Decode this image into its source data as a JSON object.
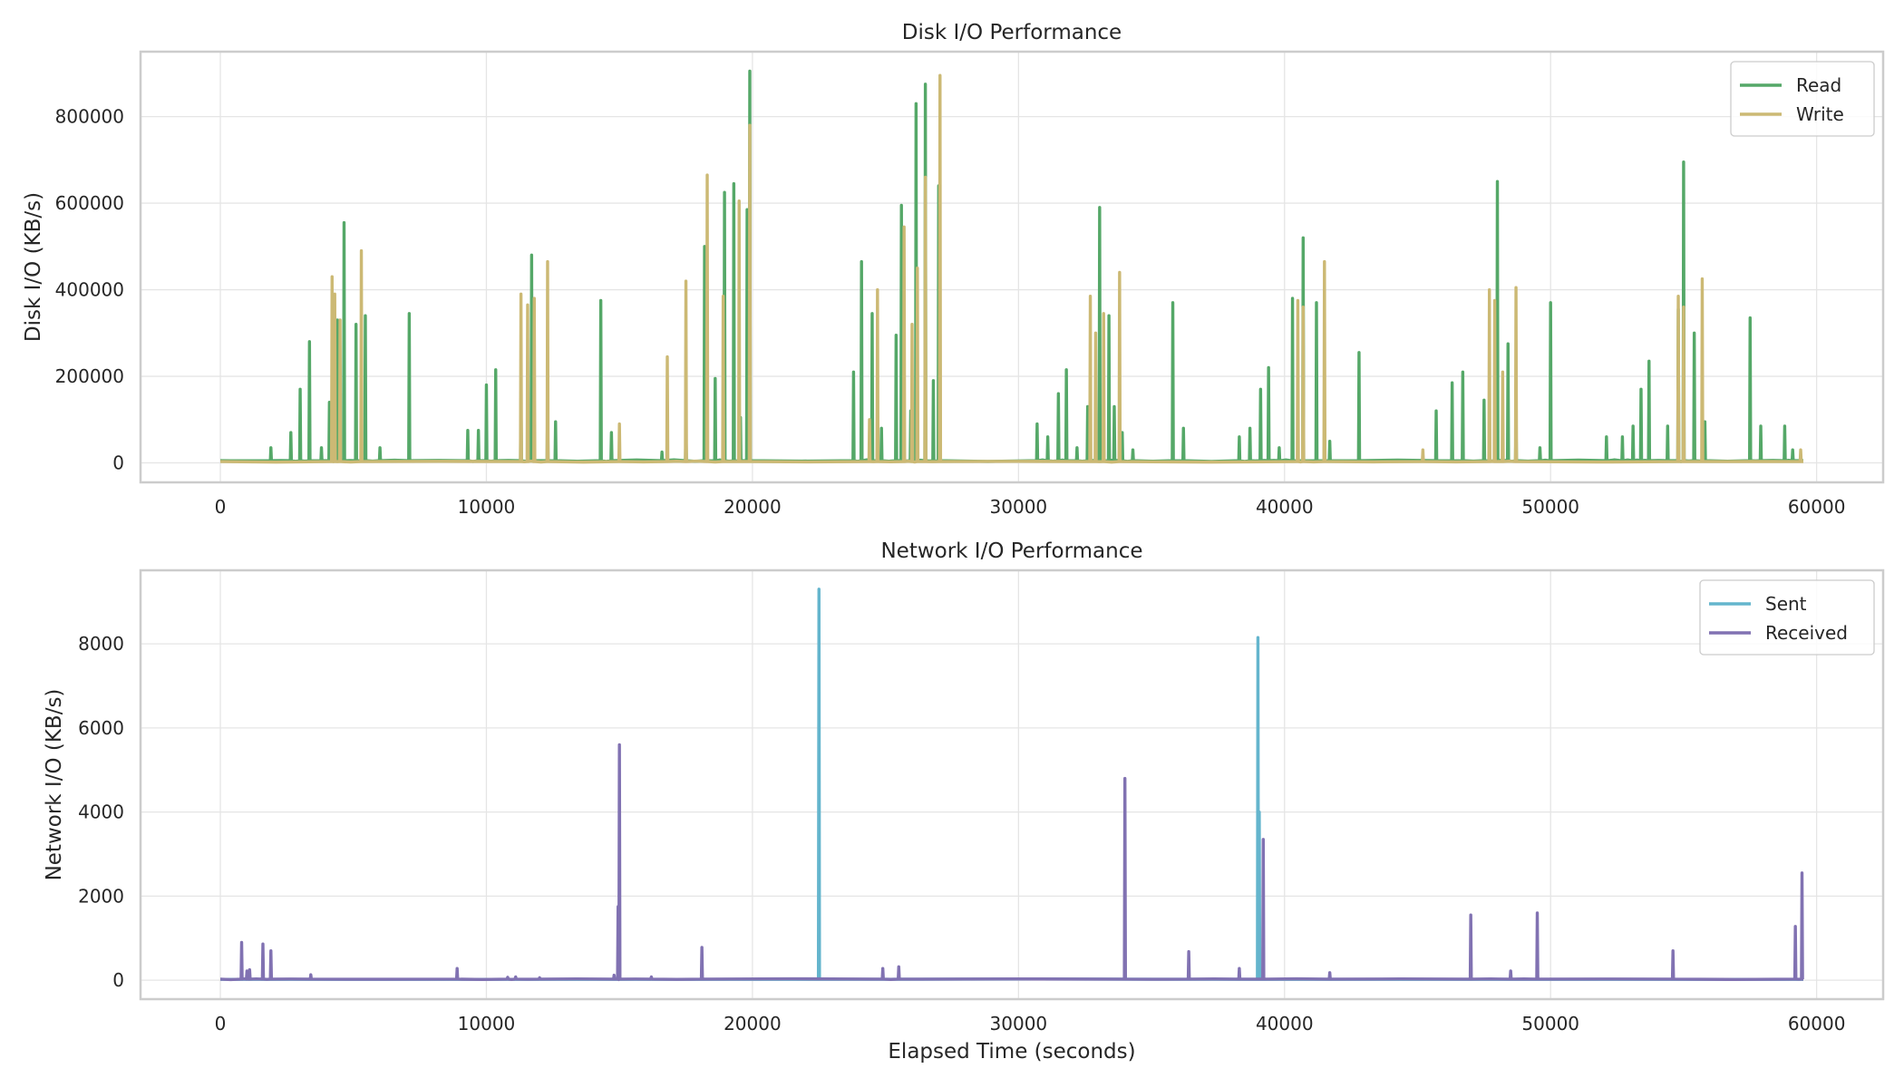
{
  "chart_data": [
    {
      "type": "line",
      "title": "Disk I/O Performance",
      "xlabel": "",
      "ylabel": "Disk I/O (KB/s)",
      "xlim": [
        -3000,
        62500
      ],
      "ylim": [
        -45000,
        950000
      ],
      "xticks": [
        0,
        10000,
        20000,
        30000,
        40000,
        50000,
        60000
      ],
      "yticks": [
        0,
        200000,
        400000,
        600000,
        800000
      ],
      "xtick_labels": [
        "0",
        "10000",
        "20000",
        "30000",
        "40000",
        "50000",
        "60000"
      ],
      "ytick_labels": [
        "0",
        "200000",
        "400000",
        "600000",
        "800000"
      ],
      "grid": true,
      "legend_position": "top-right",
      "series": [
        {
          "name": "Read",
          "color": "#55a868",
          "baseline": 5000,
          "x_end": 59500,
          "spikes": [
            [
              1900,
              35000
            ],
            [
              2650,
              70000
            ],
            [
              3000,
              170000
            ],
            [
              3350,
              280000
            ],
            [
              3800,
              35000
            ],
            [
              4100,
              140000
            ],
            [
              4400,
              330000
            ],
            [
              4650,
              555000
            ],
            [
              5100,
              320000
            ],
            [
              5450,
              340000
            ],
            [
              6000,
              35000
            ],
            [
              7100,
              345000
            ],
            [
              9300,
              75000
            ],
            [
              9700,
              75000
            ],
            [
              10000,
              180000
            ],
            [
              10350,
              215000
            ],
            [
              11300,
              150000
            ],
            [
              11700,
              480000
            ],
            [
              12300,
              135000
            ],
            [
              12600,
              95000
            ],
            [
              14300,
              375000
            ],
            [
              14700,
              70000
            ],
            [
              16600,
              25000
            ],
            [
              17500,
              75000
            ],
            [
              18200,
              500000
            ],
            [
              18600,
              195000
            ],
            [
              18950,
              625000
            ],
            [
              19300,
              645000
            ],
            [
              19550,
              105000
            ],
            [
              19800,
              585000
            ],
            [
              19900,
              905000
            ],
            [
              23800,
              210000
            ],
            [
              24100,
              465000
            ],
            [
              24500,
              345000
            ],
            [
              24850,
              80000
            ],
            [
              25400,
              295000
            ],
            [
              25600,
              595000
            ],
            [
              25950,
              120000
            ],
            [
              26150,
              830000
            ],
            [
              26500,
              875000
            ],
            [
              26800,
              190000
            ],
            [
              27000,
              640000
            ],
            [
              30700,
              90000
            ],
            [
              31100,
              60000
            ],
            [
              31500,
              160000
            ],
            [
              31800,
              215000
            ],
            [
              32200,
              35000
            ],
            [
              32600,
              130000
            ],
            [
              33050,
              590000
            ],
            [
              33400,
              340000
            ],
            [
              33600,
              130000
            ],
            [
              33900,
              70000
            ],
            [
              34300,
              30000
            ],
            [
              35800,
              370000
            ],
            [
              36200,
              80000
            ],
            [
              38300,
              60000
            ],
            [
              38700,
              80000
            ],
            [
              39100,
              170000
            ],
            [
              39400,
              220000
            ],
            [
              39800,
              35000
            ],
            [
              40300,
              380000
            ],
            [
              40700,
              520000
            ],
            [
              41200,
              370000
            ],
            [
              41700,
              50000
            ],
            [
              42800,
              255000
            ],
            [
              45700,
              120000
            ],
            [
              46300,
              185000
            ],
            [
              46700,
              210000
            ],
            [
              47500,
              145000
            ],
            [
              48000,
              650000
            ],
            [
              48400,
              275000
            ],
            [
              48700,
              95000
            ],
            [
              49600,
              35000
            ],
            [
              50000,
              370000
            ],
            [
              52100,
              60000
            ],
            [
              52700,
              60000
            ],
            [
              53100,
              85000
            ],
            [
              53400,
              170000
            ],
            [
              53700,
              235000
            ],
            [
              54400,
              85000
            ],
            [
              54800,
              355000
            ],
            [
              55000,
              695000
            ],
            [
              55400,
              300000
            ],
            [
              55800,
              95000
            ],
            [
              57500,
              335000
            ],
            [
              57900,
              85000
            ],
            [
              58800,
              85000
            ],
            [
              59100,
              30000
            ]
          ]
        },
        {
          "name": "Write",
          "color": "#ccb974",
          "baseline": 3000,
          "x_end": 59500,
          "spikes": [
            [
              4200,
              430000
            ],
            [
              4300,
              390000
            ],
            [
              4500,
              330000
            ],
            [
              5300,
              490000
            ],
            [
              11300,
              390000
            ],
            [
              11550,
              365000
            ],
            [
              11800,
              380000
            ],
            [
              12300,
              465000
            ],
            [
              15000,
              90000
            ],
            [
              16800,
              245000
            ],
            [
              17500,
              420000
            ],
            [
              18300,
              665000
            ],
            [
              18900,
              385000
            ],
            [
              19500,
              605000
            ],
            [
              19900,
              780000
            ],
            [
              24400,
              100000
            ],
            [
              24700,
              400000
            ],
            [
              25700,
              545000
            ],
            [
              26000,
              320000
            ],
            [
              26200,
              450000
            ],
            [
              26500,
              660000
            ],
            [
              27050,
              895000
            ],
            [
              32700,
              385000
            ],
            [
              32900,
              300000
            ],
            [
              33200,
              345000
            ],
            [
              33800,
              440000
            ],
            [
              40500,
              375000
            ],
            [
              40700,
              360000
            ],
            [
              41500,
              465000
            ],
            [
              45200,
              30000
            ],
            [
              47700,
              400000
            ],
            [
              47900,
              375000
            ],
            [
              48200,
              210000
            ],
            [
              48700,
              405000
            ],
            [
              54800,
              385000
            ],
            [
              55000,
              360000
            ],
            [
              55700,
              425000
            ],
            [
              59400,
              30000
            ]
          ]
        }
      ]
    },
    {
      "type": "line",
      "title": "Network I/O Performance",
      "xlabel": "Elapsed Time (seconds)",
      "ylabel": "Network I/O (KB/s)",
      "xlim": [
        -3000,
        62500
      ],
      "ylim": [
        -450,
        9750
      ],
      "xticks": [
        0,
        10000,
        20000,
        30000,
        40000,
        50000,
        60000
      ],
      "yticks": [
        0,
        2000,
        4000,
        6000,
        8000
      ],
      "xtick_labels": [
        "0",
        "10000",
        "20000",
        "30000",
        "40000",
        "50000",
        "60000"
      ],
      "ytick_labels": [
        "0",
        "2000",
        "4000",
        "6000",
        "8000"
      ],
      "grid": true,
      "legend_position": "top-right",
      "series": [
        {
          "name": "Sent",
          "color": "#64b5cd",
          "baseline": 20,
          "x_end": 59500,
          "spikes": [
            [
              22500,
              9300
            ],
            [
              39000,
              8150
            ],
            [
              39050,
              4000
            ]
          ]
        },
        {
          "name": "Received",
          "color": "#8172b2",
          "baseline": 25,
          "x_end": 59500,
          "spikes": [
            [
              800,
              900
            ],
            [
              1000,
              220
            ],
            [
              1100,
              250
            ],
            [
              1600,
              860
            ],
            [
              1900,
              700
            ],
            [
              3400,
              130
            ],
            [
              8900,
              280
            ],
            [
              10800,
              70
            ],
            [
              11100,
              80
            ],
            [
              12000,
              60
            ],
            [
              14800,
              120
            ],
            [
              14950,
              1750
            ],
            [
              15000,
              5600
            ],
            [
              16200,
              80
            ],
            [
              18100,
              780
            ],
            [
              24900,
              280
            ],
            [
              25500,
              320
            ],
            [
              34000,
              4800
            ],
            [
              36400,
              680
            ],
            [
              38300,
              280
            ],
            [
              39200,
              3350
            ],
            [
              41700,
              180
            ],
            [
              47000,
              1550
            ],
            [
              48500,
              220
            ],
            [
              49500,
              1600
            ],
            [
              54600,
              700
            ],
            [
              59200,
              1280
            ],
            [
              59450,
              2550
            ]
          ]
        }
      ]
    }
  ]
}
